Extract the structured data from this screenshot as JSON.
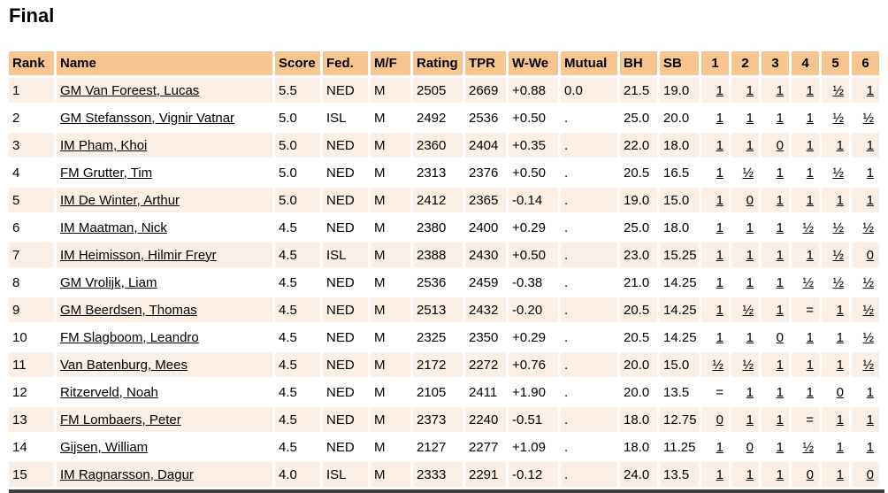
{
  "page_title": "Final",
  "colors": {
    "header_bg": "#f7c58f",
    "row_odd_bg": "#fcefe5",
    "row_even_bg": "#ffffff",
    "bottom_bar": "#3d3d3d",
    "text": "#000000"
  },
  "table": {
    "columns": [
      {
        "key": "rank",
        "label": "Rank"
      },
      {
        "key": "name",
        "label": "Name"
      },
      {
        "key": "score",
        "label": "Score"
      },
      {
        "key": "fed",
        "label": "Fed."
      },
      {
        "key": "mf",
        "label": "M/F"
      },
      {
        "key": "rating",
        "label": "Rating"
      },
      {
        "key": "tpr",
        "label": "TPR"
      },
      {
        "key": "wwe",
        "label": "W-We"
      },
      {
        "key": "mutual",
        "label": "Mutual"
      },
      {
        "key": "bh",
        "label": "BH"
      },
      {
        "key": "sb",
        "label": "SB"
      },
      {
        "key": "round1",
        "label": "1"
      },
      {
        "key": "round2",
        "label": "2"
      },
      {
        "key": "round3",
        "label": "3"
      },
      {
        "key": "round4",
        "label": "4"
      },
      {
        "key": "round5",
        "label": "5"
      },
      {
        "key": "round6",
        "label": "6"
      }
    ],
    "rows": [
      {
        "rank": "1",
        "name": "GM Van Foreest, Lucas",
        "score": "5.5",
        "fed": "NED",
        "mf": "M",
        "rating": "2505",
        "tpr": "2669",
        "wwe": "+0.88",
        "mutual": "0.0",
        "bh": "21.5",
        "sb": "19.0",
        "round1": "1",
        "round2": "1",
        "round3": "1",
        "round4": "1",
        "round5": "½",
        "round6": "1"
      },
      {
        "rank": "2",
        "name": "GM Stefansson, Vignir Vatnar",
        "score": "5.0",
        "fed": "ISL",
        "mf": "M",
        "rating": "2492",
        "tpr": "2536",
        "wwe": "+0.50",
        "mutual": ".",
        "bh": "25.0",
        "sb": "20.0",
        "round1": "1",
        "round2": "1",
        "round3": "1",
        "round4": "1",
        "round5": "½",
        "round6": "½"
      },
      {
        "rank": "3",
        "name": "IM Pham, Khoi",
        "score": "5.0",
        "fed": "NED",
        "mf": "M",
        "rating": "2360",
        "tpr": "2404",
        "wwe": "+0.35",
        "mutual": ".",
        "bh": "22.0",
        "sb": "18.0",
        "round1": "1",
        "round2": "1",
        "round3": "0",
        "round4": "1",
        "round5": "1",
        "round6": "1"
      },
      {
        "rank": "4",
        "name": "FM Grutter, Tim",
        "score": "5.0",
        "fed": "NED",
        "mf": "M",
        "rating": "2313",
        "tpr": "2376",
        "wwe": "+0.50",
        "mutual": ".",
        "bh": "20.5",
        "sb": "16.5",
        "round1": "1",
        "round2": "½",
        "round3": "1",
        "round4": "1",
        "round5": "½",
        "round6": "1"
      },
      {
        "rank": "5",
        "name": "IM De Winter, Arthur",
        "score": "5.0",
        "fed": "NED",
        "mf": "M",
        "rating": "2412",
        "tpr": "2365",
        "wwe": "-0.14",
        "mutual": ".",
        "bh": "19.0",
        "sb": "15.0",
        "round1": "1",
        "round2": "0",
        "round3": "1",
        "round4": "1",
        "round5": "1",
        "round6": "1"
      },
      {
        "rank": "6",
        "name": "IM Maatman, Nick",
        "score": "4.5",
        "fed": "NED",
        "mf": "M",
        "rating": "2380",
        "tpr": "2400",
        "wwe": "+0.29",
        "mutual": ".",
        "bh": "25.0",
        "sb": "18.0",
        "round1": "1",
        "round2": "1",
        "round3": "1",
        "round4": "½",
        "round5": "½",
        "round6": "½"
      },
      {
        "rank": "7",
        "name": "IM Heimisson, Hilmir Freyr",
        "score": "4.5",
        "fed": "ISL",
        "mf": "M",
        "rating": "2388",
        "tpr": "2430",
        "wwe": "+0.50",
        "mutual": ".",
        "bh": "23.0",
        "sb": "15.25",
        "round1": "1",
        "round2": "1",
        "round3": "1",
        "round4": "1",
        "round5": "½",
        "round6": "0"
      },
      {
        "rank": "8",
        "name": "GM Vrolijk, Liam",
        "score": "4.5",
        "fed": "NED",
        "mf": "M",
        "rating": "2536",
        "tpr": "2459",
        "wwe": "-0.38",
        "mutual": ".",
        "bh": "21.0",
        "sb": "14.25",
        "round1": "1",
        "round2": "1",
        "round3": "1",
        "round4": "½",
        "round5": "½",
        "round6": "½"
      },
      {
        "rank": "9",
        "name": "GM Beerdsen, Thomas",
        "score": "4.5",
        "fed": "NED",
        "mf": "M",
        "rating": "2513",
        "tpr": "2432",
        "wwe": "-0.20",
        "mutual": ".",
        "bh": "20.5",
        "sb": "14.25",
        "round1": "1",
        "round2": "½",
        "round3": "1",
        "round4": "=",
        "round5": "1",
        "round6": "½"
      },
      {
        "rank": "10",
        "name": "FM Slagboom, Leandro",
        "score": "4.5",
        "fed": "NED",
        "mf": "M",
        "rating": "2325",
        "tpr": "2350",
        "wwe": "+0.29",
        "mutual": ".",
        "bh": "20.5",
        "sb": "14.25",
        "round1": "1",
        "round2": "1",
        "round3": "0",
        "round4": "1",
        "round5": "1",
        "round6": "½"
      },
      {
        "rank": "11",
        "name": "Van Batenburg, Mees",
        "score": "4.5",
        "fed": "NED",
        "mf": "M",
        "rating": "2172",
        "tpr": "2272",
        "wwe": "+0.76",
        "mutual": ".",
        "bh": "20.0",
        "sb": "15.0",
        "round1": "½",
        "round2": "½",
        "round3": "1",
        "round4": "1",
        "round5": "1",
        "round6": "½"
      },
      {
        "rank": "12",
        "name": "Ritzerveld, Noah",
        "score": "4.5",
        "fed": "NED",
        "mf": "M",
        "rating": "2105",
        "tpr": "2411",
        "wwe": "+1.90",
        "mutual": ".",
        "bh": "20.0",
        "sb": "13.5",
        "round1": "=",
        "round2": "1",
        "round3": "1",
        "round4": "1",
        "round5": "0",
        "round6": "1"
      },
      {
        "rank": "13",
        "name": "FM Lombaers, Peter",
        "score": "4.5",
        "fed": "NED",
        "mf": "M",
        "rating": "2373",
        "tpr": "2240",
        "wwe": "-0.51",
        "mutual": ".",
        "bh": "18.0",
        "sb": "12.75",
        "round1": "0",
        "round2": "1",
        "round3": "1",
        "round4": "=",
        "round5": "1",
        "round6": "1"
      },
      {
        "rank": "14",
        "name": "Gijsen, William",
        "score": "4.5",
        "fed": "NED",
        "mf": "M",
        "rating": "2127",
        "tpr": "2277",
        "wwe": "+1.09",
        "mutual": ".",
        "bh": "18.0",
        "sb": "11.25",
        "round1": "1",
        "round2": "0",
        "round3": "1",
        "round4": "½",
        "round5": "1",
        "round6": "1"
      },
      {
        "rank": "15",
        "name": "IM Ragnarsson, Dagur",
        "score": "4.0",
        "fed": "ISL",
        "mf": "M",
        "rating": "2333",
        "tpr": "2291",
        "wwe": "-0.12",
        "mutual": ".",
        "bh": "24.0",
        "sb": "13.5",
        "round1": "1",
        "round2": "1",
        "round3": "1",
        "round4": "0",
        "round5": "1",
        "round6": "0"
      }
    ]
  }
}
